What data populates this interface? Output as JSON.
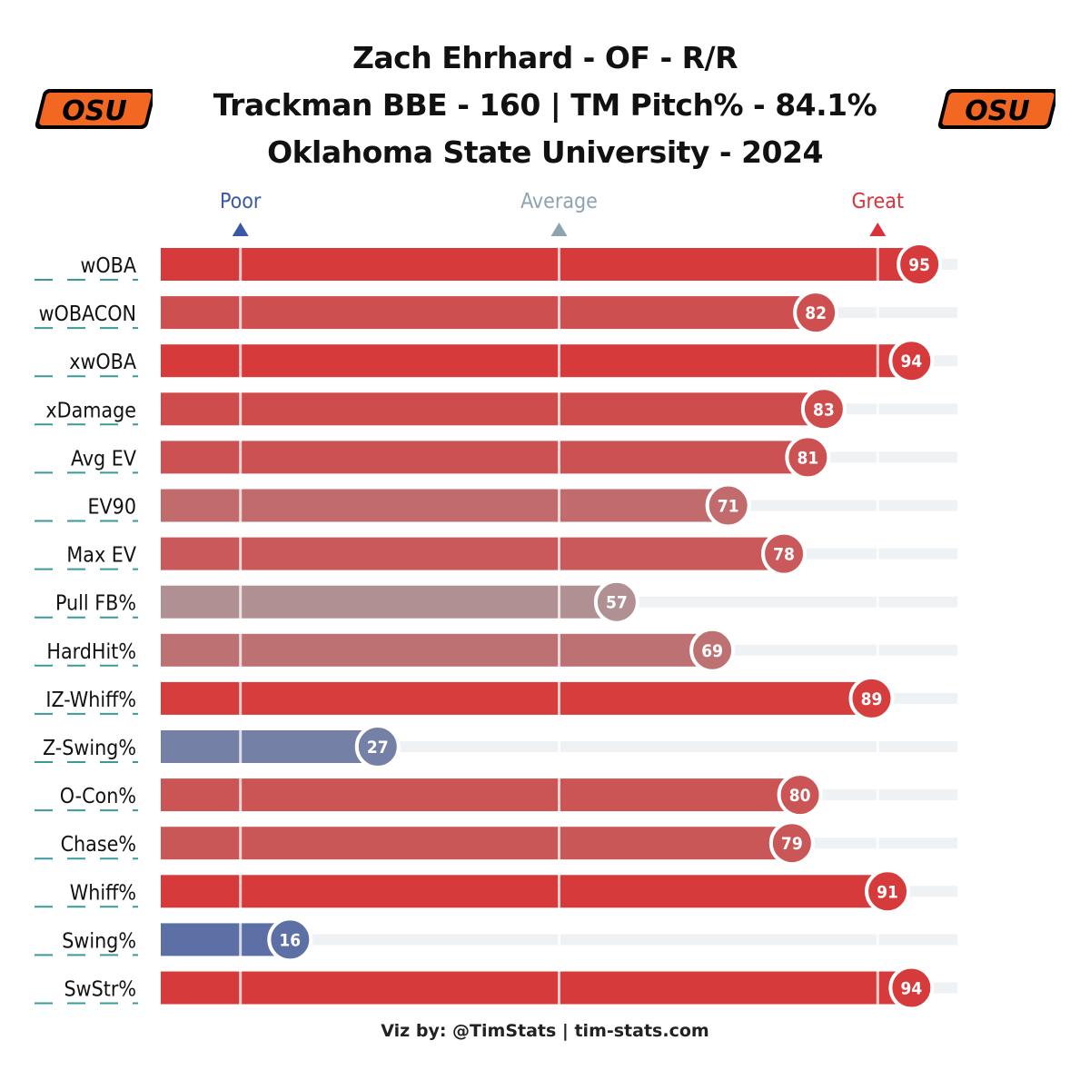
{
  "header": {
    "line1": "Zach Ehrhard - OF - R/R",
    "line2": "Trackman BBE - 160 | TM Pitch% - 84.1%",
    "line3": "Oklahoma State University - 2024"
  },
  "logo": {
    "text": "OSU",
    "color": "#f26722"
  },
  "footer": {
    "credit": "Viz by: @TimStats | tim-stats.com"
  },
  "colors": {
    "great": "#d73a3a",
    "poor": "#4f67a6",
    "average": "#a8a2a6",
    "track": "#eef2f4",
    "poor_label": "#3b58a4",
    "average_label": "#8ea2b0",
    "great_label": "#d9323c",
    "dash": "#3a9a9a"
  },
  "chart_data": {
    "type": "bar",
    "orientation": "horizontal",
    "xlim": [
      0,
      100
    ],
    "scale_markers": [
      {
        "label": "Poor",
        "value": 10
      },
      {
        "label": "Average",
        "value": 50
      },
      {
        "label": "Great",
        "value": 90
      }
    ],
    "categories": [
      "wOBA",
      "wOBACON",
      "xwOBA",
      "xDamage",
      "Avg EV",
      "EV90",
      "Max EV",
      "Pull FB%",
      "HardHit%",
      "IZ-Whiff%",
      "Z-Swing%",
      "O-Con%",
      "Chase%",
      "Whiff%",
      "Swing%",
      "SwStr%"
    ],
    "values": [
      95,
      82,
      94,
      83,
      81,
      71,
      78,
      57,
      69,
      89,
      27,
      80,
      79,
      91,
      16,
      94
    ],
    "value_labels": [
      "95",
      "82",
      "94",
      "83",
      "81",
      "71",
      "78",
      "57",
      "69",
      "89",
      "27",
      "80",
      "79",
      "91",
      "16",
      "94"
    ]
  }
}
